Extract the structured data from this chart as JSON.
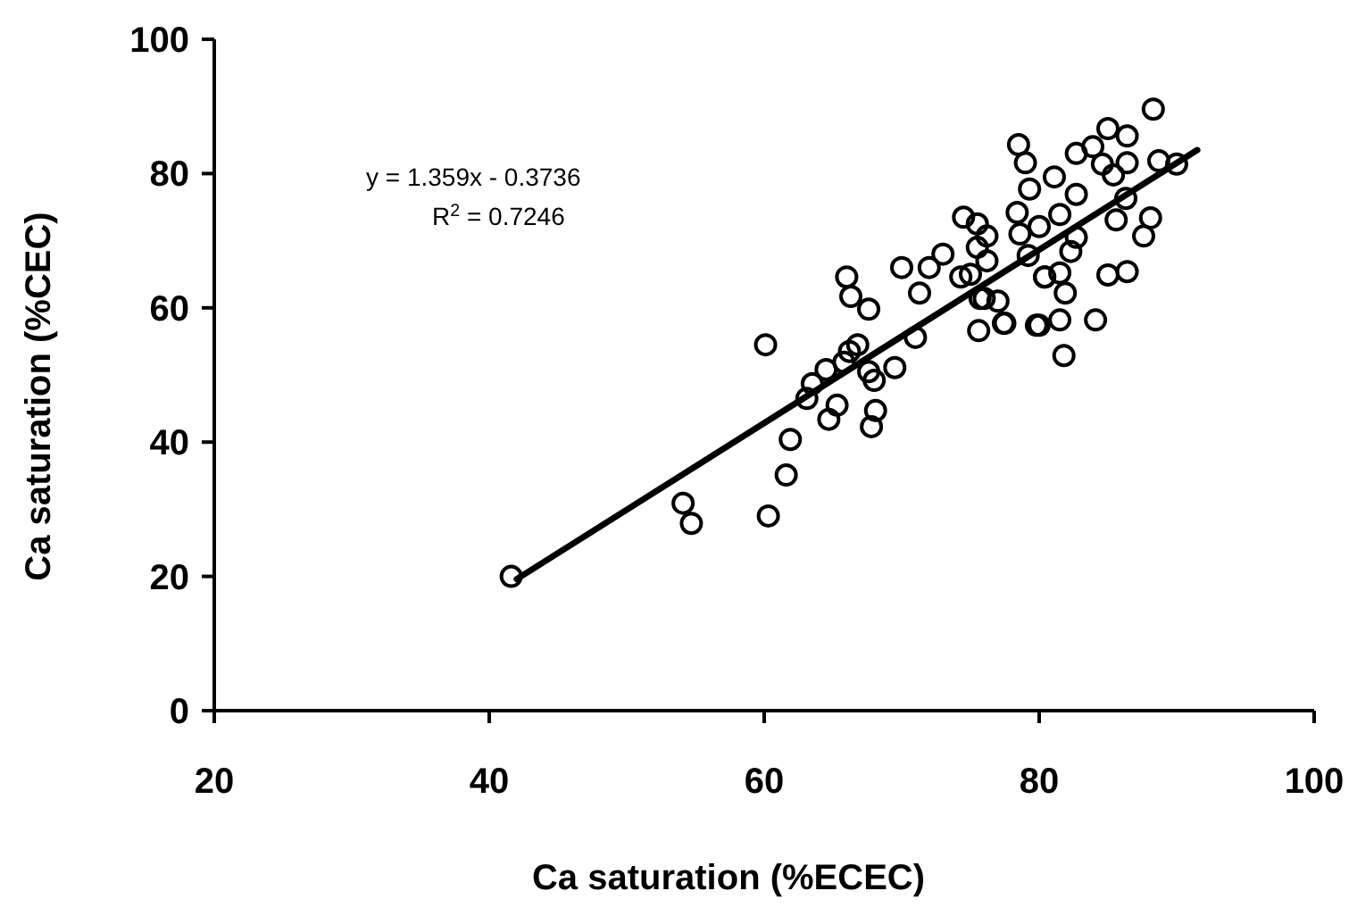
{
  "chart_data": {
    "type": "scatter",
    "xlabel": "Ca saturation (%ECEC)",
    "ylabel": "Ca saturation (%CEC)",
    "xlim": [
      20,
      100
    ],
    "ylim": [
      0,
      100
    ],
    "xticks": [
      20,
      40,
      60,
      80,
      100
    ],
    "yticks": [
      0,
      20,
      40,
      60,
      80,
      100
    ],
    "grid": false,
    "annotations": [
      "y = 1.359x - 0.3736",
      "R$^{2}$ = 0.7246"
    ],
    "series": [
      {
        "marker": "circle",
        "color": "#000000",
        "x": [
          41.6,
          54.1,
          54.7,
          60.1,
          61.9,
          61.6,
          60.3,
          63.1,
          63.5,
          64.5,
          65.3,
          64.7,
          65.8,
          66.2,
          66.8,
          67.6,
          68,
          68.1,
          67.8,
          69.5,
          71,
          66,
          66.3,
          67.6,
          70,
          71.3,
          74.3,
          75.7,
          75.6,
          77.4,
          79.8,
          80.4,
          88.3,
          85,
          86.4,
          78.5,
          79,
          82.7,
          83.9,
          84.6,
          86.4,
          88.7,
          90,
          79.3,
          81.1,
          82.7,
          85.4,
          86.3,
          78.4,
          80,
          78.6,
          81.5,
          85.6,
          88.1,
          87.6,
          82.7,
          76.2,
          76.2,
          79.2,
          82.3,
          80.4,
          81.5,
          81.9,
          85,
          86.4,
          76,
          77.5,
          80,
          81.5,
          84.1,
          81.8,
          74.5,
          75.5,
          73,
          72,
          75,
          77,
          75.5
        ],
        "values": [
          20,
          30.9,
          27.9,
          54.5,
          40.4,
          35.1,
          29,
          46.5,
          48.7,
          50.8,
          45.5,
          43.4,
          51.9,
          53.5,
          54.5,
          50.5,
          49.2,
          44.7,
          42.3,
          51.1,
          55.6,
          64.6,
          61.7,
          59.8,
          66,
          62.2,
          64.6,
          61.4,
          56.6,
          57.7,
          57.4,
          64.6,
          89.6,
          86.7,
          85.6,
          84.3,
          81.6,
          83,
          84,
          81.4,
          81.6,
          81.9,
          81.4,
          77.7,
          79.5,
          76.9,
          79.8,
          76.3,
          74.2,
          72.1,
          71,
          73.9,
          73.1,
          73.4,
          70.7,
          70.5,
          70.7,
          67,
          67.8,
          68.4,
          64.6,
          65.2,
          62.2,
          64.9,
          65.4,
          61.4,
          57.7,
          57.4,
          58.2,
          58.2,
          52.9,
          73.5,
          72.5,
          68,
          66,
          65,
          61,
          69
        ]
      },
      {
        "type": "line",
        "marker": "none",
        "line_style": "solid",
        "color": "#000000",
        "x": [
          42,
          91.5
        ],
        "values": [
          19.6,
          83.5
        ]
      }
    ]
  }
}
